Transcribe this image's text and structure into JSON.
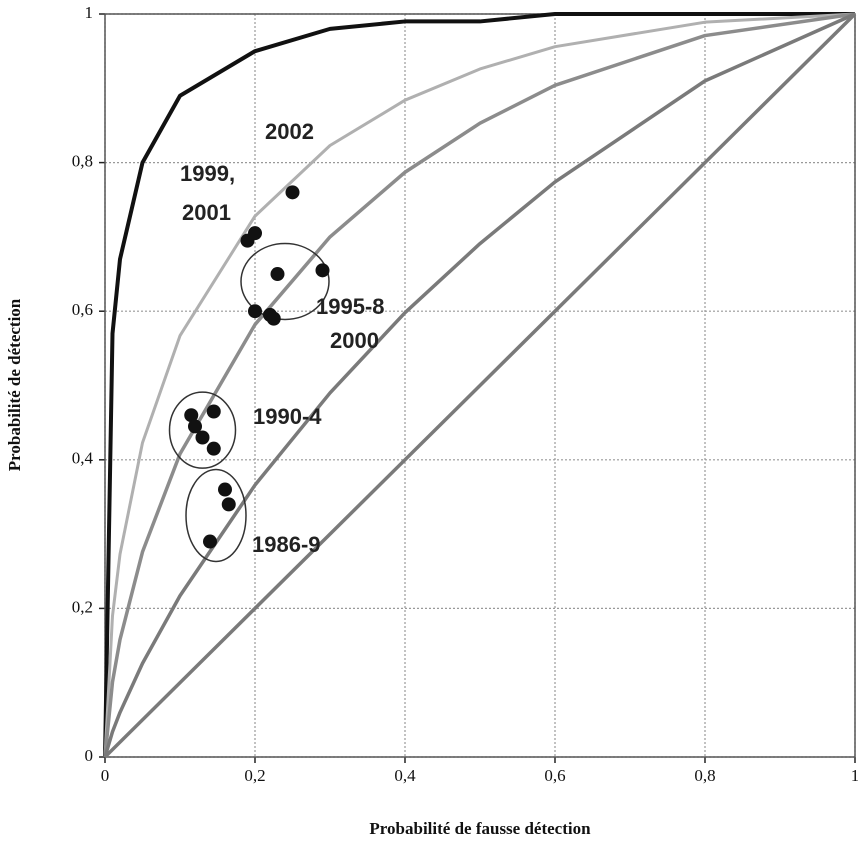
{
  "chart_data": {
    "type": "scatter",
    "xlabel": "Probabilité de fausse détection",
    "ylabel": "Probabilité de détection",
    "xlim": [
      0,
      1
    ],
    "ylim": [
      0,
      1
    ],
    "xticks": [
      0,
      {
        "value": 0.2,
        "label": "0,2"
      },
      {
        "value": 0.4,
        "label": "0,4"
      },
      {
        "value": 0.6,
        "label": "0,6"
      },
      {
        "value": 0.8,
        "label": "0,8"
      },
      1
    ],
    "yticks": [
      0,
      {
        "value": 0.2,
        "label": "0,2"
      },
      {
        "value": 0.4,
        "label": "0,4"
      },
      {
        "value": 0.6,
        "label": "0,6"
      },
      {
        "value": 0.8,
        "label": "0,8"
      },
      1
    ],
    "grid": true,
    "curves": [
      {
        "color": "#111111",
        "x": [
          0,
          0.01,
          0.02,
          0.05,
          0.1,
          0.2,
          0.3,
          0.4,
          0.5,
          0.6,
          0.8,
          1
        ],
        "values": [
          0,
          0.57,
          0.67,
          0.8,
          0.89,
          0.95,
          0.98,
          0.99,
          0.99,
          1,
          1,
          1
        ]
      },
      {
        "color": "#b0b0b0",
        "x": [
          0,
          0.01,
          0.02,
          0.05,
          0.1,
          0.2,
          0.3,
          0.4,
          0.5,
          0.6,
          0.8,
          1
        ],
        "values": [
          0,
          0.19,
          0.273,
          0.423,
          0.567,
          0.728,
          0.823,
          0.884,
          0.926,
          0.956,
          0.989,
          1
        ]
      },
      {
        "color": "#8c8c8c",
        "x": [
          0,
          0.01,
          0.02,
          0.05,
          0.1,
          0.2,
          0.3,
          0.4,
          0.5,
          0.6,
          0.8,
          1
        ],
        "values": [
          0,
          0.101,
          0.158,
          0.276,
          0.408,
          0.582,
          0.7,
          0.787,
          0.853,
          0.904,
          0.971,
          1
        ]
      },
      {
        "color": "#7a7a7a",
        "x": [
          0,
          0.01,
          0.02,
          0.05,
          0.1,
          0.2,
          0.3,
          0.4,
          0.5,
          0.6,
          0.8,
          1
        ],
        "values": [
          0,
          0.034,
          0.06,
          0.126,
          0.217,
          0.366,
          0.49,
          0.598,
          0.691,
          0.774,
          0.91,
          1
        ]
      },
      {
        "color": "#7a7a7a",
        "x": [
          0,
          1
        ],
        "values": [
          0,
          1
        ]
      }
    ],
    "series": [
      {
        "color": "#111111",
        "x": [
          0.25,
          0.19,
          0.2,
          0.23,
          0.29,
          0.2,
          0.22,
          0.225,
          0.115,
          0.12,
          0.13,
          0.145,
          0.145,
          0.16,
          0.165,
          0.14
        ],
        "values": [
          0.76,
          0.695,
          0.705,
          0.65,
          0.655,
          0.6,
          0.595,
          0.59,
          0.46,
          0.445,
          0.43,
          0.465,
          0.415,
          0.36,
          0.34,
          0.29
        ]
      }
    ],
    "annotations": [
      "2002",
      "1999,",
      "2001",
      "1995-8",
      "2000",
      "1990-4",
      "1986-9"
    ]
  }
}
